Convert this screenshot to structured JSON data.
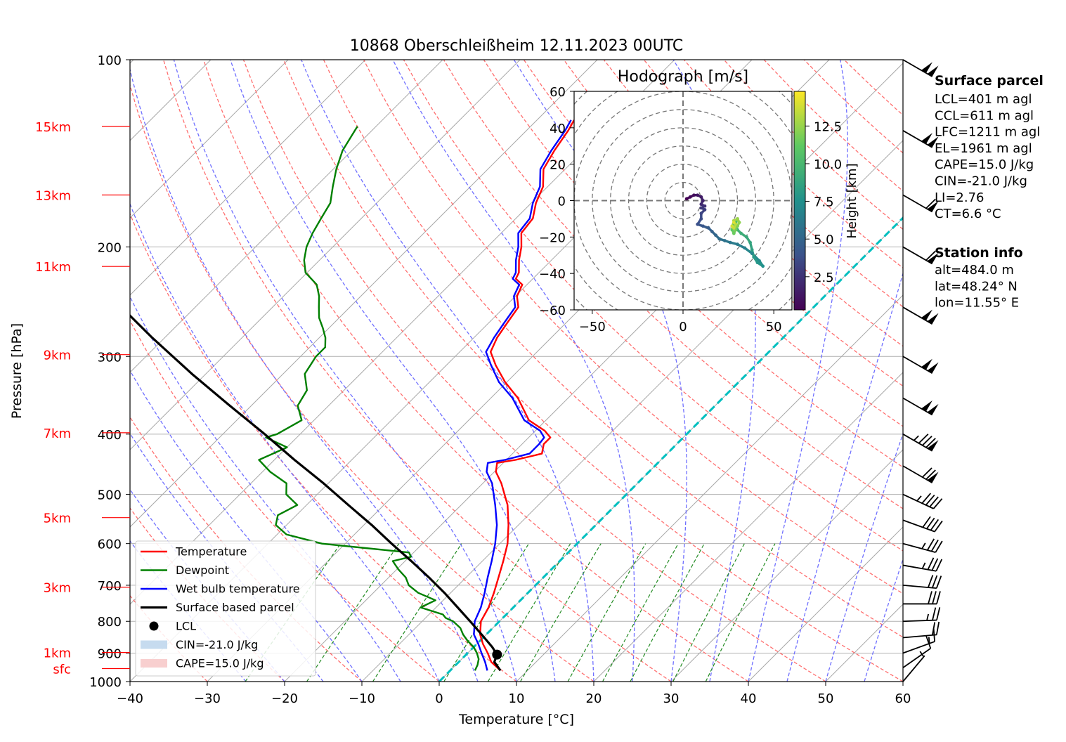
{
  "chart_data": [
    {
      "type": "line",
      "subtype": "skew-t",
      "title": "10868 Oberschleißheim 12.11.2023 00UTC",
      "xlabel": "Temperature [°C]",
      "ylabel": "Pressure [hPa]",
      "xlim": [
        -40,
        60
      ],
      "ylim": [
        1000,
        100
      ],
      "y_scale": "log",
      "x_ticks": [
        "−40",
        "−30",
        "−20",
        "−10",
        "0",
        "10",
        "20",
        "30",
        "40",
        "50",
        "60"
      ],
      "y_ticks": [
        "100",
        "200",
        "300",
        "400",
        "500",
        "600",
        "700",
        "800",
        "900",
        "1000"
      ],
      "height_labels": [
        {
          "label": "15km",
          "p": 128
        },
        {
          "label": "13km",
          "p": 165
        },
        {
          "label": "11km",
          "p": 215
        },
        {
          "label": "9km",
          "p": 298
        },
        {
          "label": "7km",
          "p": 398
        },
        {
          "label": "5km",
          "p": 545
        },
        {
          "label": "3km",
          "p": 705
        },
        {
          "label": "1km",
          "p": 898
        },
        {
          "label": "sfc",
          "p": 953
        }
      ],
      "legend_position": "lower-left",
      "legend": [
        {
          "label": "Temperature",
          "color": "#ff0000",
          "kind": "line"
        },
        {
          "label": "Dewpoint",
          "color": "#008000",
          "kind": "line"
        },
        {
          "label": "Wet bulb temperature",
          "color": "#0000ff",
          "kind": "line"
        },
        {
          "label": "Surface based parcel",
          "color": "#000000",
          "kind": "line"
        },
        {
          "label": "LCL",
          "color": "#000000",
          "kind": "dot"
        },
        {
          "label": "CIN=-21.0 J/kg",
          "color": "#c6dbef",
          "kind": "patch"
        },
        {
          "label": "CAPE=15.0 J/kg",
          "color": "#f8cfcf",
          "kind": "patch"
        }
      ],
      "series": [
        {
          "name": "Temperature",
          "color": "#ff0000",
          "points": [
            [
              960,
              6.5
            ],
            [
              930,
              4.2
            ],
            [
              900,
              2.6
            ],
            [
              870,
              0.8
            ],
            [
              840,
              -0.8
            ],
            [
              800,
              -2.4
            ],
            [
              760,
              -3.2
            ],
            [
              720,
              -4.4
            ],
            [
              680,
              -5.8
            ],
            [
              640,
              -7.3
            ],
            [
              600,
              -9.0
            ],
            [
              560,
              -11.3
            ],
            [
              520,
              -14.0
            ],
            [
              480,
              -17.6
            ],
            [
              460,
              -19.8
            ],
            [
              445,
              -20.8
            ],
            [
              440,
              -18.8
            ],
            [
              430,
              -16.2
            ],
            [
              415,
              -17.2
            ],
            [
              405,
              -17.2
            ],
            [
              395,
              -18.8
            ],
            [
              380,
              -22.2
            ],
            [
              350,
              -26.5
            ],
            [
              330,
              -30.2
            ],
            [
              310,
              -33.6
            ],
            [
              295,
              -36.0
            ],
            [
              280,
              -37.0
            ],
            [
              265,
              -37.6
            ],
            [
              250,
              -38.2
            ],
            [
              240,
              -39.8
            ],
            [
              230,
              -40.6
            ],
            [
              225,
              -42.2
            ],
            [
              220,
              -42.6
            ],
            [
              210,
              -44.2
            ],
            [
              200,
              -45.6
            ],
            [
              190,
              -47.4
            ],
            [
              180,
              -47.8
            ],
            [
              170,
              -49.4
            ],
            [
              160,
              -50.6
            ],
            [
              150,
              -52.8
            ],
            [
              140,
              -53.8
            ],
            [
              130,
              -54.6
            ],
            [
              125,
              -55.2
            ]
          ]
        },
        {
          "name": "Dewpoint",
          "color": "#008000",
          "points": [
            [
              960,
              3.2
            ],
            [
              940,
              2.8
            ],
            [
              920,
              2.2
            ],
            [
              900,
              1.2
            ],
            [
              880,
              0.0
            ],
            [
              860,
              -1.6
            ],
            [
              840,
              -3.0
            ],
            [
              820,
              -4.2
            ],
            [
              800,
              -6.0
            ],
            [
              790,
              -7.4
            ],
            [
              780,
              -8.2
            ],
            [
              760,
              -12.0
            ],
            [
              740,
              -11.0
            ],
            [
              720,
              -14.2
            ],
            [
              700,
              -16.4
            ],
            [
              680,
              -17.8
            ],
            [
              660,
              -19.8
            ],
            [
              640,
              -21.6
            ],
            [
              630,
              -19.8
            ],
            [
              620,
              -20.6
            ],
            [
              600,
              -33.0
            ],
            [
              580,
              -38.8
            ],
            [
              560,
              -41.4
            ],
            [
              540,
              -42.4
            ],
            [
              520,
              -41.2
            ],
            [
              500,
              -44.0
            ],
            [
              480,
              -45.4
            ],
            [
              460,
              -49.0
            ],
            [
              440,
              -52.0
            ],
            [
              420,
              -50.0
            ],
            [
              405,
              -54.0
            ],
            [
              400,
              -53.0
            ],
            [
              380,
              -51.6
            ],
            [
              360,
              -54.0
            ],
            [
              340,
              -54.8
            ],
            [
              320,
              -57.2
            ],
            [
              300,
              -58.0
            ],
            [
              290,
              -58.0
            ],
            [
              280,
              -59.2
            ],
            [
              270,
              -60.8
            ],
            [
              260,
              -62.6
            ],
            [
              250,
              -64.0
            ],
            [
              240,
              -65.4
            ],
            [
              230,
              -67.2
            ],
            [
              220,
              -70.2
            ],
            [
              210,
              -72.0
            ],
            [
              200,
              -73.4
            ],
            [
              190,
              -74.4
            ],
            [
              180,
              -75.2
            ],
            [
              170,
              -76.0
            ],
            [
              160,
              -77.8
            ],
            [
              150,
              -79.6
            ],
            [
              140,
              -81.2
            ],
            [
              130,
              -82.2
            ],
            [
              128,
              -82.4
            ]
          ]
        },
        {
          "name": "Wet bulb temperature",
          "color": "#0000ff",
          "points": [
            [
              960,
              4.8
            ],
            [
              930,
              3.4
            ],
            [
              900,
              1.8
            ],
            [
              870,
              0.2
            ],
            [
              840,
              -1.6
            ],
            [
              800,
              -3.2
            ],
            [
              760,
              -4.2
            ],
            [
              720,
              -5.6
            ],
            [
              680,
              -7.2
            ],
            [
              640,
              -8.8
            ],
            [
              600,
              -10.6
            ],
            [
              560,
              -12.8
            ],
            [
              520,
              -15.6
            ],
            [
              480,
              -18.8
            ],
            [
              460,
              -21.0
            ],
            [
              445,
              -22.0
            ],
            [
              440,
              -20.2
            ],
            [
              430,
              -17.8
            ],
            [
              415,
              -17.8
            ],
            [
              405,
              -18.0
            ],
            [
              395,
              -19.4
            ],
            [
              380,
              -22.8
            ],
            [
              350,
              -27.2
            ],
            [
              330,
              -31.0
            ],
            [
              310,
              -34.2
            ],
            [
              295,
              -36.6
            ],
            [
              280,
              -37.4
            ],
            [
              265,
              -38.0
            ],
            [
              250,
              -38.6
            ],
            [
              240,
              -40.2
            ],
            [
              230,
              -41.0
            ],
            [
              225,
              -42.6
            ],
            [
              220,
              -43.0
            ],
            [
              210,
              -44.6
            ],
            [
              200,
              -46.0
            ],
            [
              190,
              -47.8
            ],
            [
              180,
              -48.2
            ],
            [
              170,
              -49.8
            ],
            [
              160,
              -51.0
            ],
            [
              150,
              -53.2
            ],
            [
              140,
              -54.2
            ],
            [
              130,
              -55.0
            ],
            [
              125,
              -55.6
            ]
          ]
        },
        {
          "name": "Surface based parcel",
          "color": "#000000",
          "points": [
            [
              960,
              6.5
            ],
            [
              930,
              4.6
            ],
            [
              905,
              4.0
            ],
            [
              880,
              2.4
            ],
            [
              840,
              -0.6
            ],
            [
              800,
              -3.8
            ],
            [
              760,
              -7.2
            ],
            [
              720,
              -10.8
            ],
            [
              680,
              -14.8
            ],
            [
              640,
              -19.2
            ],
            [
              600,
              -24.0
            ],
            [
              560,
              -29.0
            ],
            [
              520,
              -34.6
            ],
            [
              480,
              -40.6
            ],
            [
              440,
              -47.4
            ],
            [
              400,
              -54.6
            ],
            [
              360,
              -62.8
            ],
            [
              320,
              -71.8
            ],
            [
              280,
              -81.6
            ],
            [
              240,
              -92.4
            ],
            [
              200,
              -103.8
            ]
          ]
        }
      ],
      "lcl": {
        "t": 4.0,
        "p": 905
      },
      "background_lines": {
        "isotherms_color": "#a9a9a9",
        "dry_adiabats_color": "#ff6f6f",
        "moist_adiabats_color": "#6f6fff",
        "mixing_ratio_color": "#228b22",
        "freezing_line_color": "#00bfbf"
      }
    },
    {
      "type": "scatter",
      "title": "Hodograph [m/s]",
      "xlim": [
        -60,
        60
      ],
      "ylim": [
        -60,
        60
      ],
      "x_ticks": [
        "−50",
        "0",
        "50"
      ],
      "y_ticks": [
        "60",
        "40",
        "20",
        "0",
        "−20",
        "−40",
        "−60"
      ],
      "colorbar_label": "Height [km]",
      "colorbar_ticks": [
        "2.5",
        "5.0",
        "7.5",
        "10.0",
        "12.5"
      ],
      "colorbar_range": [
        0.3,
        14.8
      ],
      "points": [
        [
          2,
          1,
          0.3
        ],
        [
          4,
          2,
          0.6
        ],
        [
          6,
          3,
          0.9
        ],
        [
          8,
          3,
          1.2
        ],
        [
          10,
          2,
          1.5
        ],
        [
          11,
          0,
          1.8
        ],
        [
          10,
          -2,
          2.1
        ],
        [
          12,
          -3,
          2.4
        ],
        [
          10,
          -4,
          2.7
        ],
        [
          12,
          -5,
          3.0
        ],
        [
          10,
          -7,
          3.3
        ],
        [
          10,
          -10,
          3.6
        ],
        [
          8,
          -13,
          3.9
        ],
        [
          11,
          -14,
          4.2
        ],
        [
          14,
          -15,
          4.5
        ],
        [
          16,
          -17,
          4.8
        ],
        [
          18,
          -19,
          5.1
        ],
        [
          20,
          -21,
          5.4
        ],
        [
          23,
          -22,
          5.7
        ],
        [
          26,
          -23,
          6.0
        ],
        [
          30,
          -24,
          6.3
        ],
        [
          34,
          -26,
          6.6
        ],
        [
          38,
          -29,
          6.9
        ],
        [
          42,
          -33,
          7.2
        ],
        [
          44,
          -36,
          7.5
        ],
        [
          41,
          -34,
          7.8
        ],
        [
          39,
          -31,
          8.1
        ],
        [
          38,
          -27,
          8.4
        ],
        [
          37,
          -23,
          8.7
        ],
        [
          35,
          -20,
          9.0
        ],
        [
          32,
          -18,
          9.3
        ],
        [
          30,
          -16,
          9.6
        ],
        [
          28,
          -15,
          9.9
        ],
        [
          29,
          -12,
          10.2
        ],
        [
          30,
          -10,
          10.5
        ],
        [
          28,
          -13,
          10.8
        ],
        [
          27,
          -16,
          11.1
        ],
        [
          28,
          -18,
          11.4
        ],
        [
          29,
          -16,
          11.7
        ],
        [
          30,
          -14,
          12.0
        ],
        [
          31,
          -12,
          12.3
        ],
        [
          30,
          -10,
          12.6
        ],
        [
          28,
          -11,
          12.9
        ],
        [
          29,
          -13,
          13.2
        ],
        [
          28,
          -15,
          13.5
        ],
        [
          27,
          -14,
          13.8
        ],
        [
          28,
          -12,
          14.1
        ]
      ]
    }
  ],
  "wind_barbs": [
    {
      "p": 100,
      "speed_kt": 100,
      "dir_deg": 300
    },
    {
      "p": 130,
      "speed_kt": 100,
      "dir_deg": 300
    },
    {
      "p": 165,
      "speed_kt": 60,
      "dir_deg": 300
    },
    {
      "p": 200,
      "speed_kt": 60,
      "dir_deg": 300
    },
    {
      "p": 250,
      "speed_kt": 100,
      "dir_deg": 300
    },
    {
      "p": 300,
      "speed_kt": 100,
      "dir_deg": 300
    },
    {
      "p": 350,
      "speed_kt": 100,
      "dir_deg": 300
    },
    {
      "p": 400,
      "speed_kt": 85,
      "dir_deg": 300
    },
    {
      "p": 450,
      "speed_kt": 70,
      "dir_deg": 300
    },
    {
      "p": 500,
      "speed_kt": 45,
      "dir_deg": 295
    },
    {
      "p": 550,
      "speed_kt": 40,
      "dir_deg": 290
    },
    {
      "p": 600,
      "speed_kt": 35,
      "dir_deg": 285
    },
    {
      "p": 650,
      "speed_kt": 35,
      "dir_deg": 280
    },
    {
      "p": 700,
      "speed_kt": 30,
      "dir_deg": 275
    },
    {
      "p": 750,
      "speed_kt": 30,
      "dir_deg": 270
    },
    {
      "p": 800,
      "speed_kt": 25,
      "dir_deg": 268
    },
    {
      "p": 850,
      "speed_kt": 20,
      "dir_deg": 265
    },
    {
      "p": 900,
      "speed_kt": 15,
      "dir_deg": 250
    },
    {
      "p": 950,
      "speed_kt": 10,
      "dir_deg": 235
    },
    {
      "p": 1000,
      "speed_kt": 5,
      "dir_deg": 220
    }
  ],
  "info": {
    "surface_title": "Surface parcel",
    "surface_lines": [
      "LCL=401 m agl",
      "CCL=611 m agl",
      "LFC=1211 m agl",
      "EL=1961 m agl",
      "CAPE=15.0 J/kg",
      "CIN=-21.0 J/kg",
      "LI=2.76",
      "CT=6.6 °C"
    ],
    "station_title": "Station info",
    "station_lines": [
      "alt=484.0 m",
      "lat=48.24° N",
      "lon=11.55° E"
    ]
  }
}
